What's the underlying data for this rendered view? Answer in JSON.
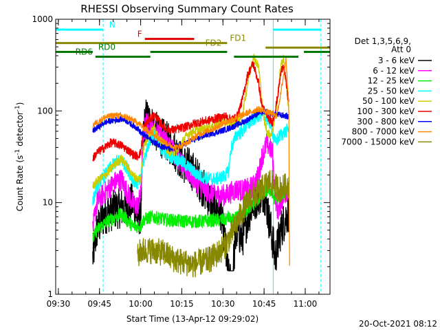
{
  "chart_data": {
    "type": "line",
    "title": "RHESSI Observing Summary Count Rates",
    "xlabel": "Start Time (13-Apr-12 09:29:02)",
    "ylabel_parts": {
      "pre": "Count Rate (s",
      "sup1": "-1",
      "mid": " detector",
      "sup2": "-1",
      "post": ")"
    },
    "x_unit": "minutes after 09:29:02",
    "xlim": [
      0,
      100
    ],
    "ylim": [
      1,
      1000
    ],
    "y_scale": "log",
    "x_ticks": [
      {
        "x": 0.97,
        "label": "09:30"
      },
      {
        "x": 15.97,
        "label": "09:45"
      },
      {
        "x": 30.97,
        "label": "10:00"
      },
      {
        "x": 45.97,
        "label": "10:15"
      },
      {
        "x": 60.97,
        "label": "10:30"
      },
      {
        "x": 75.97,
        "label": "10:45"
      },
      {
        "x": 90.97,
        "label": "11:00"
      }
    ],
    "y_ticks": [
      {
        "y": 1,
        "label": "1"
      },
      {
        "y": 10,
        "label": "10"
      },
      {
        "y": 100,
        "label": "100"
      },
      {
        "y": 1000,
        "label": "1000"
      }
    ],
    "legend": {
      "position": "right",
      "header": [
        "Det 1,3,5,6,9,",
        "Att 0"
      ],
      "entries": [
        {
          "label": "3 - 6 keV",
          "color": "#000000"
        },
        {
          "label": "6 - 12 keV",
          "color": "#ff00ff"
        },
        {
          "label": "12 - 25 keV",
          "color": "#00ee00"
        },
        {
          "label": "25 - 50 keV",
          "color": "#00ffff"
        },
        {
          "label": "50 - 100 keV",
          "color": "#cccc00"
        },
        {
          "label": "100 - 300 keV",
          "color": "#ee0000"
        },
        {
          "label": "300 - 800 keV",
          "color": "#0000ee"
        },
        {
          "label": "800 - 7000 keV",
          "color": "#ff8800"
        },
        {
          "label": "7000 - 15000 keV",
          "color": "#888800"
        }
      ]
    },
    "vlines": [
      {
        "x": 17.3,
        "color": "#00ffff",
        "style": "dashed"
      },
      {
        "x": 79.3,
        "color": "#00ffff",
        "style": "solid"
      },
      {
        "x": 96.7,
        "color": "#00ffff",
        "style": "dashed"
      }
    ],
    "flag_bars": [
      {
        "label": "N",
        "color": "#00ffff",
        "y": 770,
        "segments": [
          [
            0,
            17.3
          ],
          [
            79.3,
            96.7
          ]
        ],
        "label_at": 19.5,
        "label_side": "right"
      },
      {
        "label": "F",
        "color": "#dd0000",
        "y": 610,
        "segments": [
          [
            32.5,
            50.5
          ]
        ],
        "label_at": 31.5,
        "label_side": "left"
      },
      {
        "label": "FD1",
        "color": "#888800",
        "y": 550,
        "segments": [
          [
            0,
            62.5
          ]
        ],
        "label_at": 63.5,
        "label_side": "right"
      },
      {
        "label": "FD2",
        "color": "#888800",
        "y": 490,
        "segments": [
          [
            76.5,
            100
          ]
        ],
        "label_at": 60.5,
        "label_side": "left"
      },
      {
        "label": "RD0",
        "color": "#007700",
        "y": 440,
        "segments": [
          [
            0,
            13.5
          ],
          [
            34.5,
            62.5
          ],
          [
            90.5,
            100
          ]
        ],
        "label_at": 15.5,
        "label_side": "right"
      },
      {
        "label": "RD6",
        "color": "#007700",
        "y": 390,
        "segments": [
          [
            14.5,
            34.5
          ],
          [
            65,
            88.5
          ]
        ],
        "label_at": 13.5,
        "label_side": "left"
      }
    ],
    "series": [
      {
        "name": "3 - 6 keV",
        "color": "#000000",
        "noise": 0.45,
        "min": 1.8,
        "x": [
          13.5,
          15,
          18,
          22,
          26,
          28,
          29.8,
          31,
          32,
          33,
          35,
          38,
          40,
          42,
          44,
          46,
          48,
          50,
          52,
          54,
          56,
          58,
          60,
          62,
          63,
          64,
          65,
          66,
          68,
          70,
          72,
          74,
          76,
          77,
          78,
          79,
          80,
          81,
          82,
          84,
          85
        ],
        "y": [
          2.5,
          5,
          7.5,
          8.5,
          9,
          10,
          7,
          7.5,
          60,
          85,
          70,
          52,
          48,
          42,
          35,
          28,
          25,
          22,
          18,
          14,
          11,
          9,
          8.5,
          3,
          1.5,
          1.3,
          2.5,
          5,
          4,
          7,
          10,
          12,
          13,
          9,
          6,
          4,
          2.5,
          3.5,
          5,
          7,
          8
        ]
      },
      {
        "name": "6 - 12 keV",
        "color": "#ff00ff",
        "noise": 0.25,
        "min": 1,
        "x": [
          13.5,
          15,
          18,
          20,
          22,
          24,
          26,
          28,
          29.8,
          31,
          32,
          33,
          35,
          38,
          40,
          42,
          44,
          46,
          48,
          50,
          52,
          54,
          56,
          58,
          60,
          62,
          64,
          66,
          68,
          70,
          72,
          74,
          75,
          77,
          79,
          80,
          81,
          82,
          84,
          85
        ],
        "y": [
          5,
          10,
          13,
          15,
          17,
          18,
          13,
          10,
          9,
          12,
          55,
          75,
          65,
          55,
          48,
          40,
          32,
          26,
          22,
          19,
          16,
          14,
          13,
          12.5,
          12,
          12,
          13,
          14,
          13.5,
          14,
          15,
          20,
          30,
          45,
          35,
          12,
          8,
          10,
          13,
          15
        ]
      },
      {
        "name": "12 - 25 keV",
        "color": "#00ee00",
        "noise": 0.15,
        "min": 1,
        "x": [
          13.5,
          15,
          18,
          20,
          22,
          24,
          26,
          28,
          29.8,
          31,
          32,
          35,
          40,
          45,
          50,
          55,
          60,
          62,
          63,
          64,
          66,
          68,
          70,
          72,
          74,
          76,
          78,
          79,
          80,
          82,
          84,
          85
        ],
        "y": [
          4,
          5,
          6,
          6.5,
          7,
          7.5,
          6.5,
          5.5,
          5.5,
          5.5,
          6.5,
          7,
          6.5,
          6.3,
          6.2,
          6.3,
          6.5,
          6.5,
          7,
          6.3,
          6.8,
          7.5,
          8.5,
          9.5,
          11,
          13,
          14,
          12,
          11,
          12,
          14,
          13
        ]
      },
      {
        "name": "25 - 50 keV",
        "color": "#00ffff",
        "noise": 0.15,
        "min": 1,
        "x": [
          13.5,
          15,
          18,
          20,
          22,
          24,
          26,
          28,
          29.8,
          31,
          32,
          34,
          36,
          38,
          40,
          42,
          44,
          46,
          48,
          50,
          52,
          55,
          58,
          60,
          62,
          63,
          64,
          66,
          68,
          70,
          72,
          74,
          76,
          78,
          79,
          80,
          81,
          82,
          84,
          85
        ],
        "y": [
          10,
          15,
          20,
          24,
          28,
          29,
          24,
          18,
          16,
          18,
          28,
          45,
          55,
          40,
          35,
          32,
          30,
          28,
          25,
          22,
          20,
          18.5,
          18,
          18.5,
          20,
          22,
          40,
          55,
          60,
          70,
          80,
          90,
          88,
          75,
          60,
          45,
          50,
          55,
          60,
          65
        ]
      },
      {
        "name": "50 - 100 keV",
        "color": "#cccc00",
        "noise": 0.1,
        "min": 1,
        "x": [
          13.5,
          15,
          18,
          20,
          22,
          24,
          26,
          28,
          29.8,
          31,
          32,
          34,
          36,
          38,
          40,
          42,
          44,
          46,
          48,
          50,
          52,
          55,
          58,
          60,
          62,
          63,
          64,
          66,
          68,
          70,
          72,
          74,
          75,
          76,
          77,
          78,
          79,
          80,
          81,
          82,
          83,
          84,
          85
        ],
        "y": [
          15,
          17,
          20,
          23,
          27,
          30,
          25,
          20,
          18,
          18,
          40,
          55,
          65,
          50,
          40,
          35,
          36,
          45,
          55,
          60,
          62,
          65,
          70,
          75,
          80,
          72,
          70,
          75,
          90,
          200,
          400,
          300,
          150,
          80,
          60,
          55,
          60,
          90,
          150,
          300,
          380,
          200,
          100
        ]
      },
      {
        "name": "100 - 300 keV",
        "color": "#ee0000",
        "noise": 0.1,
        "min": 1,
        "x": [
          13.5,
          15,
          18,
          20,
          22,
          24,
          26,
          28,
          29.8,
          31,
          32,
          34,
          36,
          38,
          40,
          42,
          44,
          46,
          48,
          50,
          52,
          55,
          58,
          60,
          62,
          63,
          64,
          66,
          68,
          70,
          72,
          74,
          75,
          76,
          77,
          78,
          79,
          80,
          81,
          82,
          83,
          84,
          85
        ],
        "y": [
          30,
          35,
          40,
          45,
          44,
          42,
          38,
          34,
          32,
          35,
          65,
          80,
          90,
          75,
          65,
          62,
          63,
          65,
          68,
          72,
          75,
          78,
          82,
          85,
          88,
          82,
          82,
          85,
          130,
          250,
          330,
          200,
          120,
          100,
          90,
          80,
          75,
          100,
          150,
          250,
          330,
          200,
          120
        ]
      },
      {
        "name": "300 - 800 keV",
        "color": "#0000ee",
        "noise": 0.07,
        "min": 1,
        "x": [
          13.5,
          15,
          18,
          20,
          22,
          24,
          26,
          28,
          29.8,
          31,
          32,
          34,
          36,
          38,
          40,
          42,
          44,
          46,
          48,
          50,
          52,
          55,
          58,
          60,
          62,
          64,
          66,
          68,
          70,
          72,
          74,
          76,
          78,
          80,
          82,
          84,
          85
        ],
        "y": [
          60,
          65,
          75,
          78,
          80,
          82,
          78,
          70,
          65,
          58,
          55,
          50,
          45,
          42,
          40,
          38,
          40,
          42,
          45,
          48,
          50,
          55,
          58,
          60,
          63,
          66,
          70,
          75,
          80,
          88,
          95,
          98,
          95,
          92,
          90,
          88,
          85
        ]
      },
      {
        "name": "800 - 7000 keV",
        "color": "#ff8800",
        "noise": 0.07,
        "min": 1,
        "x": [
          13.5,
          15,
          18,
          20,
          22,
          24,
          26,
          28,
          29.8,
          31,
          32,
          34,
          36,
          38,
          40,
          42,
          44,
          46,
          48,
          50,
          52,
          55,
          58,
          60,
          62,
          64,
          66,
          68,
          70,
          72,
          74,
          76,
          78,
          79.5,
          80.5,
          82,
          84,
          85,
          85.3
        ],
        "y": [
          70,
          75,
          85,
          88,
          90,
          88,
          85,
          80,
          75,
          70,
          65,
          60,
          55,
          50,
          45,
          42,
          40,
          42,
          45,
          50,
          55,
          60,
          65,
          70,
          75,
          80,
          85,
          90,
          95,
          100,
          105,
          100,
          95,
          90,
          88,
          150,
          380,
          100,
          1.2
        ]
      },
      {
        "name": "7000 - 15000 keV",
        "color": "#888800",
        "noise": 0.3,
        "min": 1.2,
        "x": [
          29.8,
          31,
          35,
          40,
          42,
          45,
          48,
          50,
          52,
          55,
          58,
          60,
          62,
          64,
          66,
          68,
          70,
          72,
          74,
          76,
          78,
          80,
          82,
          84,
          85
        ],
        "y": [
          2.5,
          3,
          3,
          2.8,
          2.5,
          2.3,
          2.2,
          2.1,
          2.2,
          2.3,
          2.6,
          3,
          3.5,
          4.5,
          6,
          8,
          10,
          12,
          13,
          15,
          17,
          15,
          14,
          15,
          16
        ]
      }
    ]
  },
  "footer": {
    "timestamp": "20-Oct-2021 08:12"
  }
}
